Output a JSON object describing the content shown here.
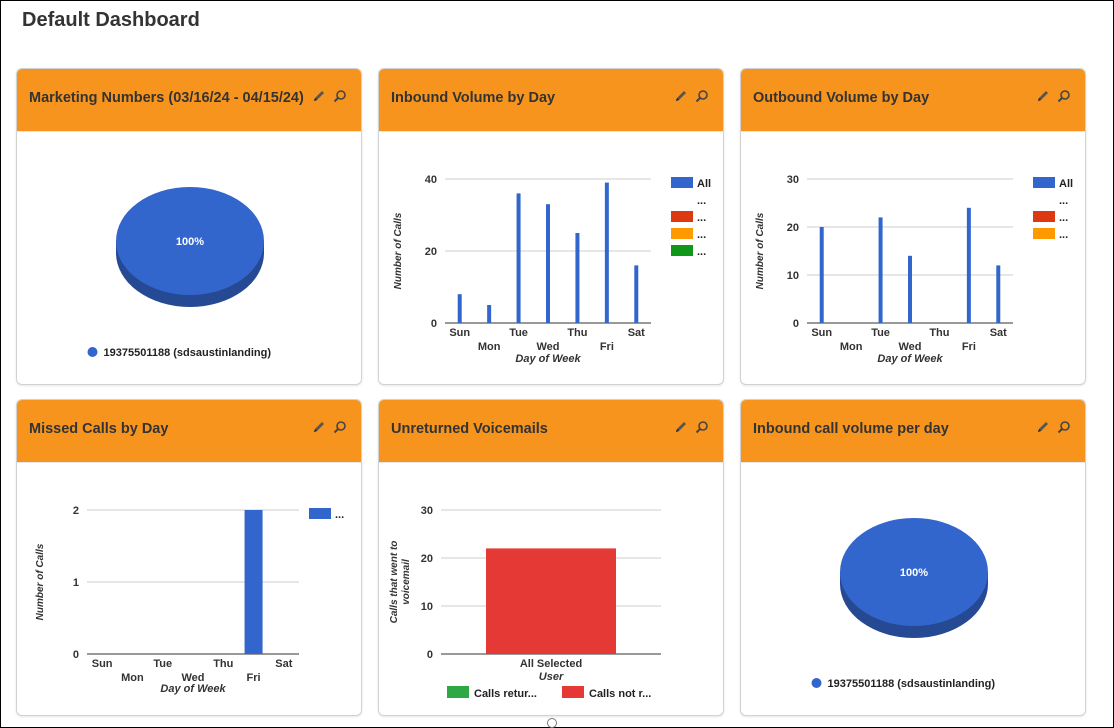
{
  "dashboard": {
    "title": "Default Dashboard"
  },
  "icons": {
    "edit": "pencil-icon",
    "zoom": "magnifier-icon"
  },
  "colors": {
    "header": "#f7941d",
    "blue": "#3366cc",
    "red": "#dc3912",
    "orange": "#ff9900",
    "green": "#109618",
    "bar_red": "#e53935",
    "bar_green": "#2ea844"
  },
  "widgets": [
    {
      "title": "Marketing Numbers (03/16/24 - 04/15/24)"
    },
    {
      "title": "Inbound Volume by Day"
    },
    {
      "title": "Outbound Volume by Day"
    },
    {
      "title": "Missed Calls by Day"
    },
    {
      "title": "Unreturned Voicemails"
    },
    {
      "title": "Inbound call volume per day"
    }
  ],
  "chart_data": [
    {
      "type": "pie",
      "labels": [
        "19375501188 (sdsaustinlanding)"
      ],
      "values": [
        100
      ],
      "slice_labels": [
        "100%"
      ],
      "colors": [
        "#3366cc"
      ],
      "legend": "bottom"
    },
    {
      "type": "bar",
      "categories": [
        "Sun",
        "Mon",
        "Tue",
        "Wed",
        "Thu",
        "Fri",
        "Sat"
      ],
      "series": [
        {
          "name": "All",
          "values": [
            8,
            5,
            36,
            33,
            25,
            39,
            16
          ],
          "color": "#3366cc"
        },
        {
          "name": "...",
          "values": [
            0,
            0,
            0,
            0,
            0,
            0,
            0
          ],
          "color": "#ffffff"
        },
        {
          "name": "...",
          "values": [
            0,
            0,
            0,
            0,
            0,
            0,
            0
          ],
          "color": "#dc3912"
        },
        {
          "name": "...",
          "values": [
            0,
            0,
            0,
            0,
            0,
            0,
            0
          ],
          "color": "#ff9900"
        },
        {
          "name": "...",
          "values": [
            0,
            0,
            0,
            0,
            0,
            0,
            0
          ],
          "color": "#109618"
        }
      ],
      "xlabel": "Day of Week",
      "ylabel": "Number of Calls",
      "ylim": [
        0,
        40
      ],
      "yticks": [
        0,
        20,
        40
      ],
      "grid": true,
      "legend": "right"
    },
    {
      "type": "bar",
      "categories": [
        "Sun",
        "Mon",
        "Tue",
        "Wed",
        "Thu",
        "Fri",
        "Sat"
      ],
      "series": [
        {
          "name": "All",
          "values": [
            20,
            0,
            22,
            14,
            0,
            24,
            12
          ],
          "color": "#3366cc"
        },
        {
          "name": "...",
          "values": [
            0,
            0,
            0,
            0,
            0,
            0,
            0
          ],
          "color": "#ffffff"
        },
        {
          "name": "...",
          "values": [
            0,
            0,
            0,
            0,
            0,
            0,
            0
          ],
          "color": "#dc3912"
        },
        {
          "name": "...",
          "values": [
            0,
            0,
            0,
            0,
            0,
            0,
            0
          ],
          "color": "#ff9900"
        }
      ],
      "xlabel": "Day of Week",
      "ylabel": "Number of Calls",
      "ylim": [
        0,
        30
      ],
      "yticks": [
        0,
        10,
        20,
        30
      ],
      "grid": true,
      "legend": "right"
    },
    {
      "type": "bar",
      "categories": [
        "Sun",
        "Mon",
        "Tue",
        "Wed",
        "Thu",
        "Fri",
        "Sat"
      ],
      "series": [
        {
          "name": "...",
          "values": [
            0,
            0,
            0,
            0,
            0,
            2,
            0
          ],
          "color": "#3366cc"
        }
      ],
      "xlabel": "Day of Week",
      "ylabel": "Number of Calls",
      "ylim": [
        0,
        2
      ],
      "yticks": [
        0,
        1,
        2
      ],
      "grid": true,
      "legend": "right"
    },
    {
      "type": "bar",
      "categories": [
        "All Selected"
      ],
      "series": [
        {
          "name": "Calls retur...",
          "values": [
            0
          ],
          "color": "#2ea844"
        },
        {
          "name": "Calls not r...",
          "values": [
            22
          ],
          "color": "#e53935"
        }
      ],
      "xlabel": "User",
      "ylabel": "Calls that went to voicemail",
      "ylim": [
        0,
        30
      ],
      "yticks": [
        0,
        10,
        20,
        30
      ],
      "grid": true,
      "legend": "bottom"
    },
    {
      "type": "pie",
      "labels": [
        "19375501188 (sdsaustinlanding)"
      ],
      "values": [
        100
      ],
      "slice_labels": [
        "100%"
      ],
      "colors": [
        "#3366cc"
      ],
      "legend": "bottom"
    }
  ]
}
